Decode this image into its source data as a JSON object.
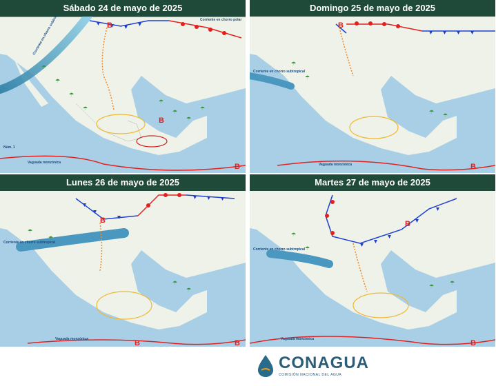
{
  "panels": [
    {
      "title": "Sábado 24 de mayo de 2025",
      "labels": {
        "jet": "Corriente en chorro subtropical",
        "jet2": "Corriente en chorro polar",
        "trough": "Vaguada monzónica",
        "num": "Núm. 1",
        "low": "B"
      }
    },
    {
      "title": "Domingo 25 de mayo de 2025",
      "labels": {
        "jet": "Corriente en chorro subtropical",
        "trough": "Vaguada monzónica",
        "low": "B"
      }
    },
    {
      "title": "Lunes 26 de mayo de 2025",
      "labels": {
        "jet": "Corriente en chorro subtropical",
        "trough": "Vaguada monzónica",
        "low": "B"
      }
    },
    {
      "title": "Martes 27 de mayo de 2025",
      "labels": {
        "jet": "Corriente en chorro subtropical",
        "trough": "Vaguada monzónica",
        "low": "B"
      }
    }
  ],
  "footer": {
    "logo_text": "CONAGUA",
    "logo_subtitle": "COMISIÓN NACIONAL DEL AGUA",
    "logo_icon": "conagua-drop-logo"
  },
  "colors": {
    "title_bar": "#1f4a3a",
    "cold_front": "#1f3fd1",
    "warm_front": "#e32020",
    "jet_stream": "#5aa6c8",
    "rain_icons": "#3a9a3a",
    "storm_icons": "#f08a2a"
  }
}
